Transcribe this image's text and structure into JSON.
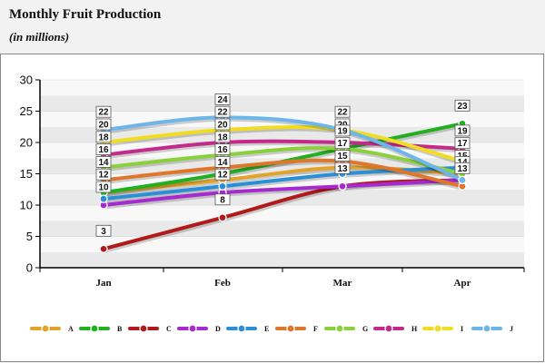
{
  "chart_data": {
    "type": "line",
    "title": "Monthly Fruit Production",
    "subtitle": "(in millions)",
    "xlabel": "",
    "ylabel": "",
    "categories": [
      "Jan",
      "Feb",
      "Mar",
      "Apr"
    ],
    "ylim": [
      0,
      30
    ],
    "yticks": [
      0,
      5,
      10,
      15,
      20,
      25,
      30
    ],
    "grid": "alternating horizontal bands",
    "legend_position": "bottom",
    "series": [
      {
        "name": "A",
        "color": "#e3a32a",
        "values": [
          12,
          14,
          16,
          15
        ]
      },
      {
        "name": "B",
        "color": "#22b022",
        "values": [
          12,
          15,
          19,
          23
        ]
      },
      {
        "name": "C",
        "color": "#b01a1a",
        "values": [
          3,
          8,
          13,
          14
        ]
      },
      {
        "name": "D",
        "color": "#a62ad0",
        "values": [
          10,
          12,
          13,
          14
        ]
      },
      {
        "name": "E",
        "color": "#2a8fd6",
        "values": [
          11,
          13,
          15,
          16
        ]
      },
      {
        "name": "F",
        "color": "#e0762a",
        "values": [
          14,
          16,
          17,
          13
        ]
      },
      {
        "name": "G",
        "color": "#8ad03a",
        "values": [
          16,
          18,
          19,
          15
        ]
      },
      {
        "name": "H",
        "color": "#c42a8a",
        "values": [
          18,
          20,
          20,
          19
        ]
      },
      {
        "name": "I",
        "color": "#f0dc20",
        "values": [
          20,
          22,
          22,
          17
        ]
      },
      {
        "name": "J",
        "color": "#6cb6ea",
        "values": [
          22,
          24,
          22,
          14
        ]
      }
    ],
    "data_labels": [
      [
        22,
        20,
        18,
        16,
        14,
        12,
        10,
        3
      ],
      [
        24,
        22,
        20,
        18,
        16,
        14,
        12,
        8
      ],
      [
        22,
        20,
        19,
        17,
        15,
        13
      ],
      [
        23,
        19,
        17,
        15,
        14,
        13
      ]
    ]
  }
}
